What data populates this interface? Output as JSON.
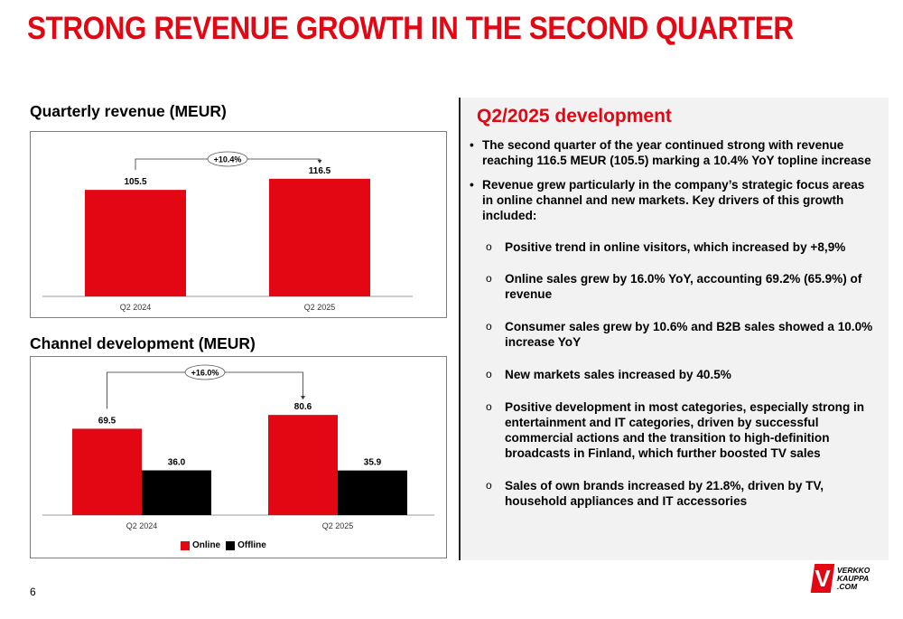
{
  "slide": {
    "title": "STRONG REVENUE GROWTH IN THE SECOND QUARTER",
    "page_number": "6",
    "logo_text": "VERKKO\nKAUPPA\n.COM",
    "logo_mark": "V"
  },
  "colors": {
    "accent": "#e30613",
    "offline": "#000000",
    "panel_bg": "#f2f2f2"
  },
  "chart_data": [
    {
      "type": "bar",
      "title": "Quarterly revenue (MEUR)",
      "categories": [
        "Q2 2024",
        "Q2 2025"
      ],
      "series": [
        {
          "values": [
            105.5,
            116.5
          ],
          "labels": [
            "105.5",
            "116.5"
          ]
        }
      ],
      "annotation": "+10.4%",
      "ylim": [
        0,
        145
      ],
      "grid": false,
      "legend": "none"
    },
    {
      "type": "bar",
      "title": "Channel development (MEUR)",
      "categories": [
        "Q2 2024",
        "Q2 2025"
      ],
      "series": [
        {
          "name": "Online",
          "values": [
            69.5,
            80.6
          ],
          "labels": [
            "69.5",
            "80.6"
          ]
        },
        {
          "name": "Offline",
          "values": [
            36.0,
            35.9
          ],
          "labels": [
            "36.0",
            "35.9"
          ]
        }
      ],
      "annotation": "+16.0%",
      "ylim": [
        0,
        120
      ],
      "grid": false,
      "legend": "bottom-center"
    }
  ],
  "panel": {
    "title": "Q2/2025 development",
    "bullets": [
      "The second quarter of the year continued strong with revenue reaching 116.5 MEUR (105.5) marking a 10.4% YoY topline increase",
      "Revenue grew particularly in the company’s strategic focus areas in online channel and new markets. Key drivers of this growth included:"
    ],
    "sub_bullets": [
      "Positive trend in online visitors, which increased by +8,9%",
      "Online sales grew by 16.0% YoY, accounting 69.2% (65.9%) of revenue",
      "Consumer sales grew by 10.6% and B2B sales  showed a 10.0% increase YoY",
      "New markets sales increased by 40.5%",
      "Positive development in most categories, especially strong in entertainment and IT categories, driven by successful commercial actions and the transition to high-definition broadcasts in Finland, which further boosted TV sales",
      "Sales of own brands increased by 21.8%, driven by TV, household appliances and IT accessories"
    ]
  }
}
